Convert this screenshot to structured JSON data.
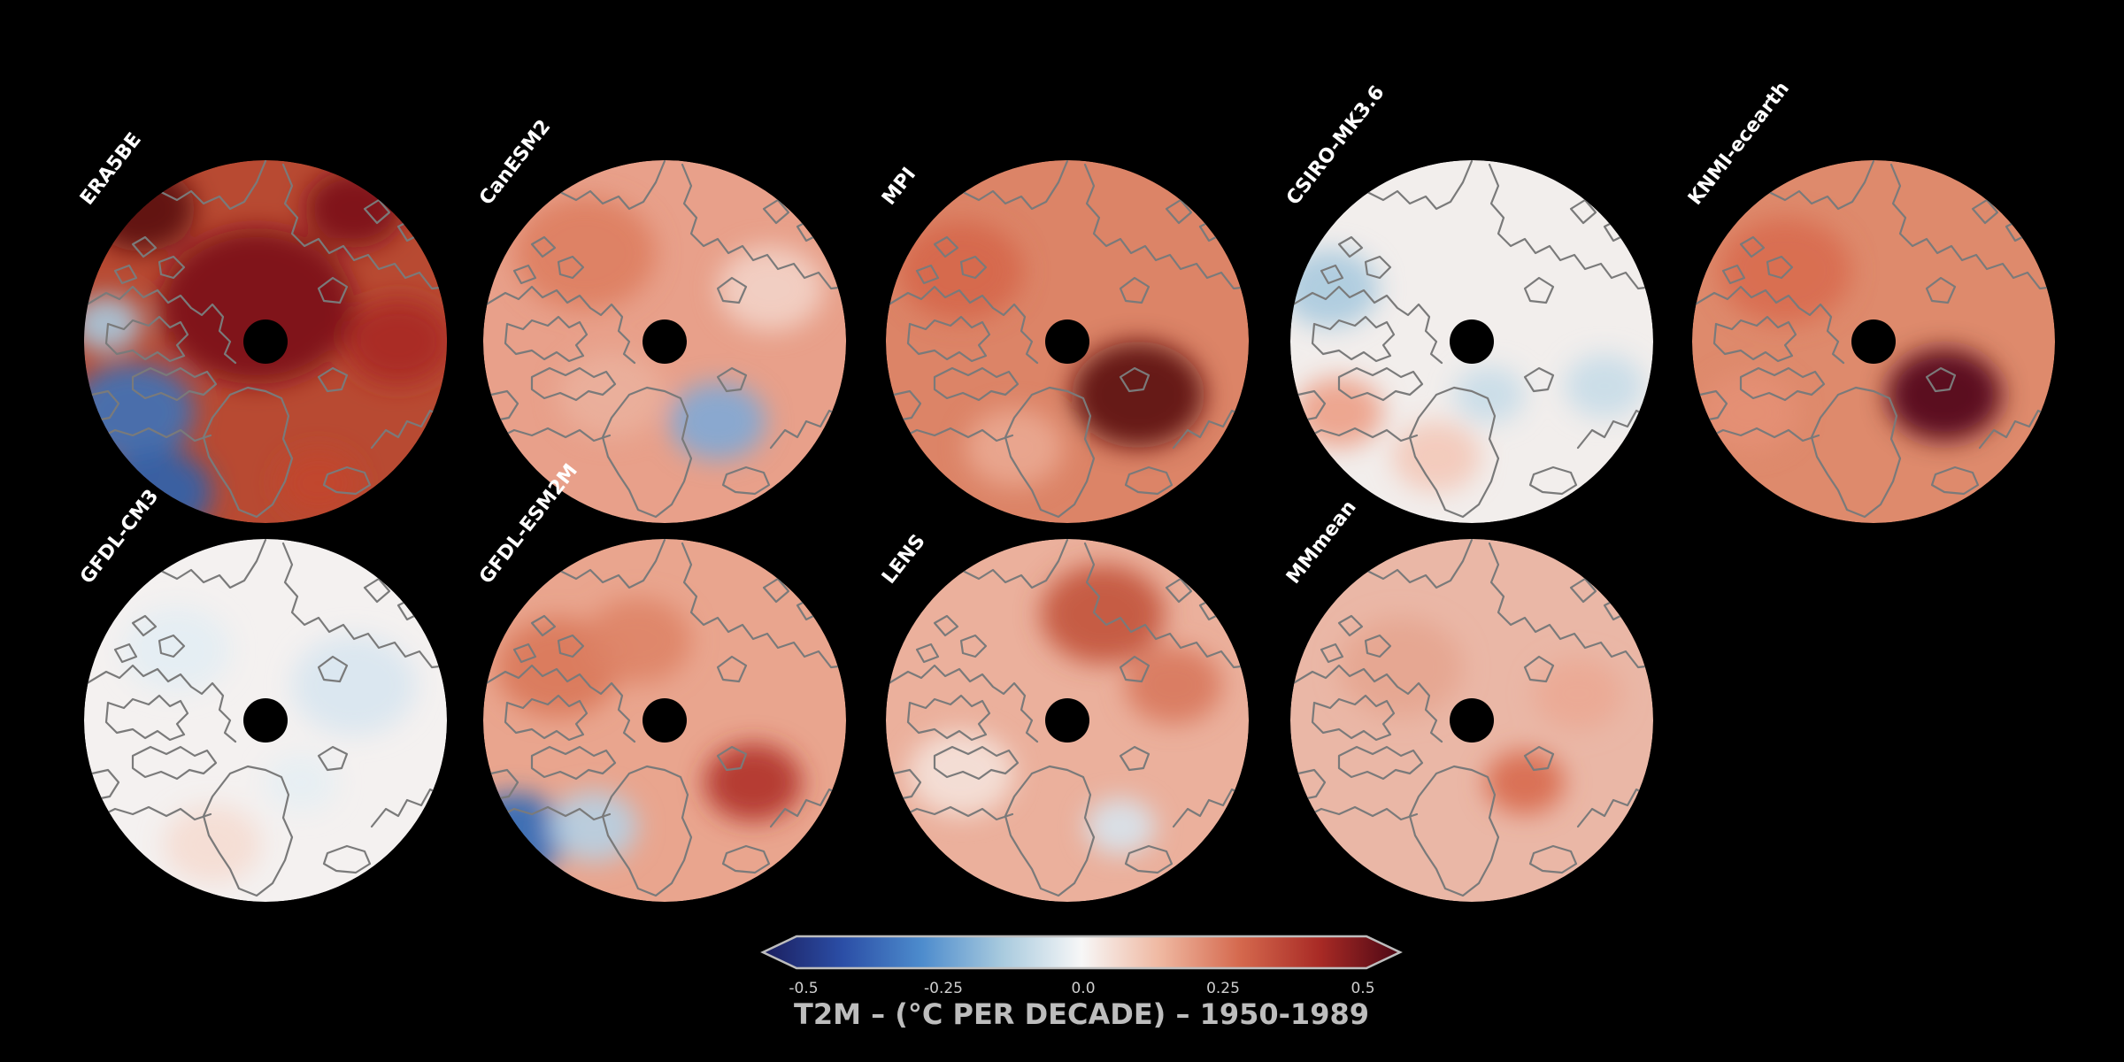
{
  "figure": {
    "panels": [
      {
        "id": "era5be",
        "label": "ERA5BE",
        "base": "#b84a32"
      },
      {
        "id": "canesm2",
        "label": "CanESM2",
        "base": "#e8a08a"
      },
      {
        "id": "mpi",
        "label": "MPI",
        "base": "#dc8467"
      },
      {
        "id": "csiro",
        "label": "CSIRO-MK3.6",
        "base": "#f2eeec"
      },
      {
        "id": "knmi",
        "label": "KNMI-ecearth",
        "base": "#de8a6c"
      },
      {
        "id": "gfdl-cm3",
        "label": "GFDL-CM3",
        "base": "#f4f1f0"
      },
      {
        "id": "gfdl-esm2m",
        "label": "GFDL-ESM2M",
        "base": "#e9a58e"
      },
      {
        "id": "lens",
        "label": "LENS",
        "base": "#ebb09c"
      },
      {
        "id": "mmmean",
        "label": "MMmean",
        "base": "#eab7a6"
      }
    ],
    "colorbar": {
      "title": "T2M – (°C PER DECADE) – 1950-1989",
      "ticks": [
        "-0.5",
        "-0.25",
        "0.0",
        "0.25",
        "0.5"
      ],
      "min": -0.5,
      "max": 0.5,
      "colors": [
        "#1b1e5e",
        "#2b4ea6",
        "#4d8ccd",
        "#a8cade",
        "#f7f7f7",
        "#efb7a0",
        "#d4684d",
        "#a82a25",
        "#4c0714"
      ]
    }
  }
}
